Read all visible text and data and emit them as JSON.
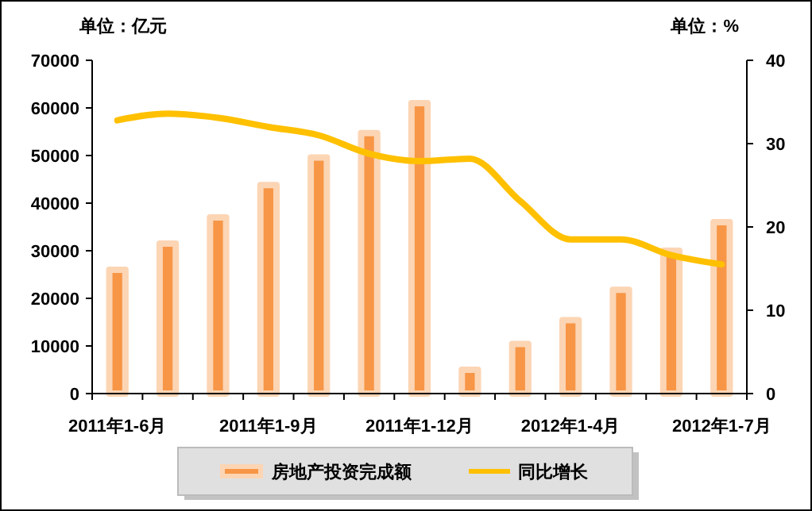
{
  "chart_data": {
    "type": "bar",
    "ylabel": "单位：亿元",
    "y2label": "单位：%",
    "categories": [
      "2011年1-6月",
      null,
      null,
      "2011年1-9月",
      null,
      null,
      "2011年1-12月",
      null,
      null,
      "2012年1-4月",
      null,
      null,
      "2012年1-7月"
    ],
    "series": [
      {
        "name": "房地产投资完成额",
        "color": "#f79646",
        "values": [
          26000,
          31500,
          37000,
          43800,
          49600,
          54700,
          61000,
          5000,
          10400,
          15400,
          21800,
          30000,
          36000
        ]
      },
      {
        "name": "同比增长",
        "type": "line",
        "axis": "y2",
        "color": "#ffc000",
        "values": [
          32.8,
          33.6,
          33.1,
          32.0,
          31.0,
          28.8,
          27.9,
          28.2,
          23.1,
          18.5,
          18.5,
          16.6,
          15.5
        ]
      }
    ],
    "ylim": [
      0,
      70000
    ],
    "yticks": [
      0,
      10000,
      20000,
      30000,
      40000,
      50000,
      60000,
      70000
    ],
    "y2lim": [
      0,
      40
    ],
    "y2ticks": [
      0,
      10,
      20,
      30,
      40
    ],
    "grid": false,
    "legend": "bottom",
    "marker": "none",
    "line_style": "solid"
  }
}
